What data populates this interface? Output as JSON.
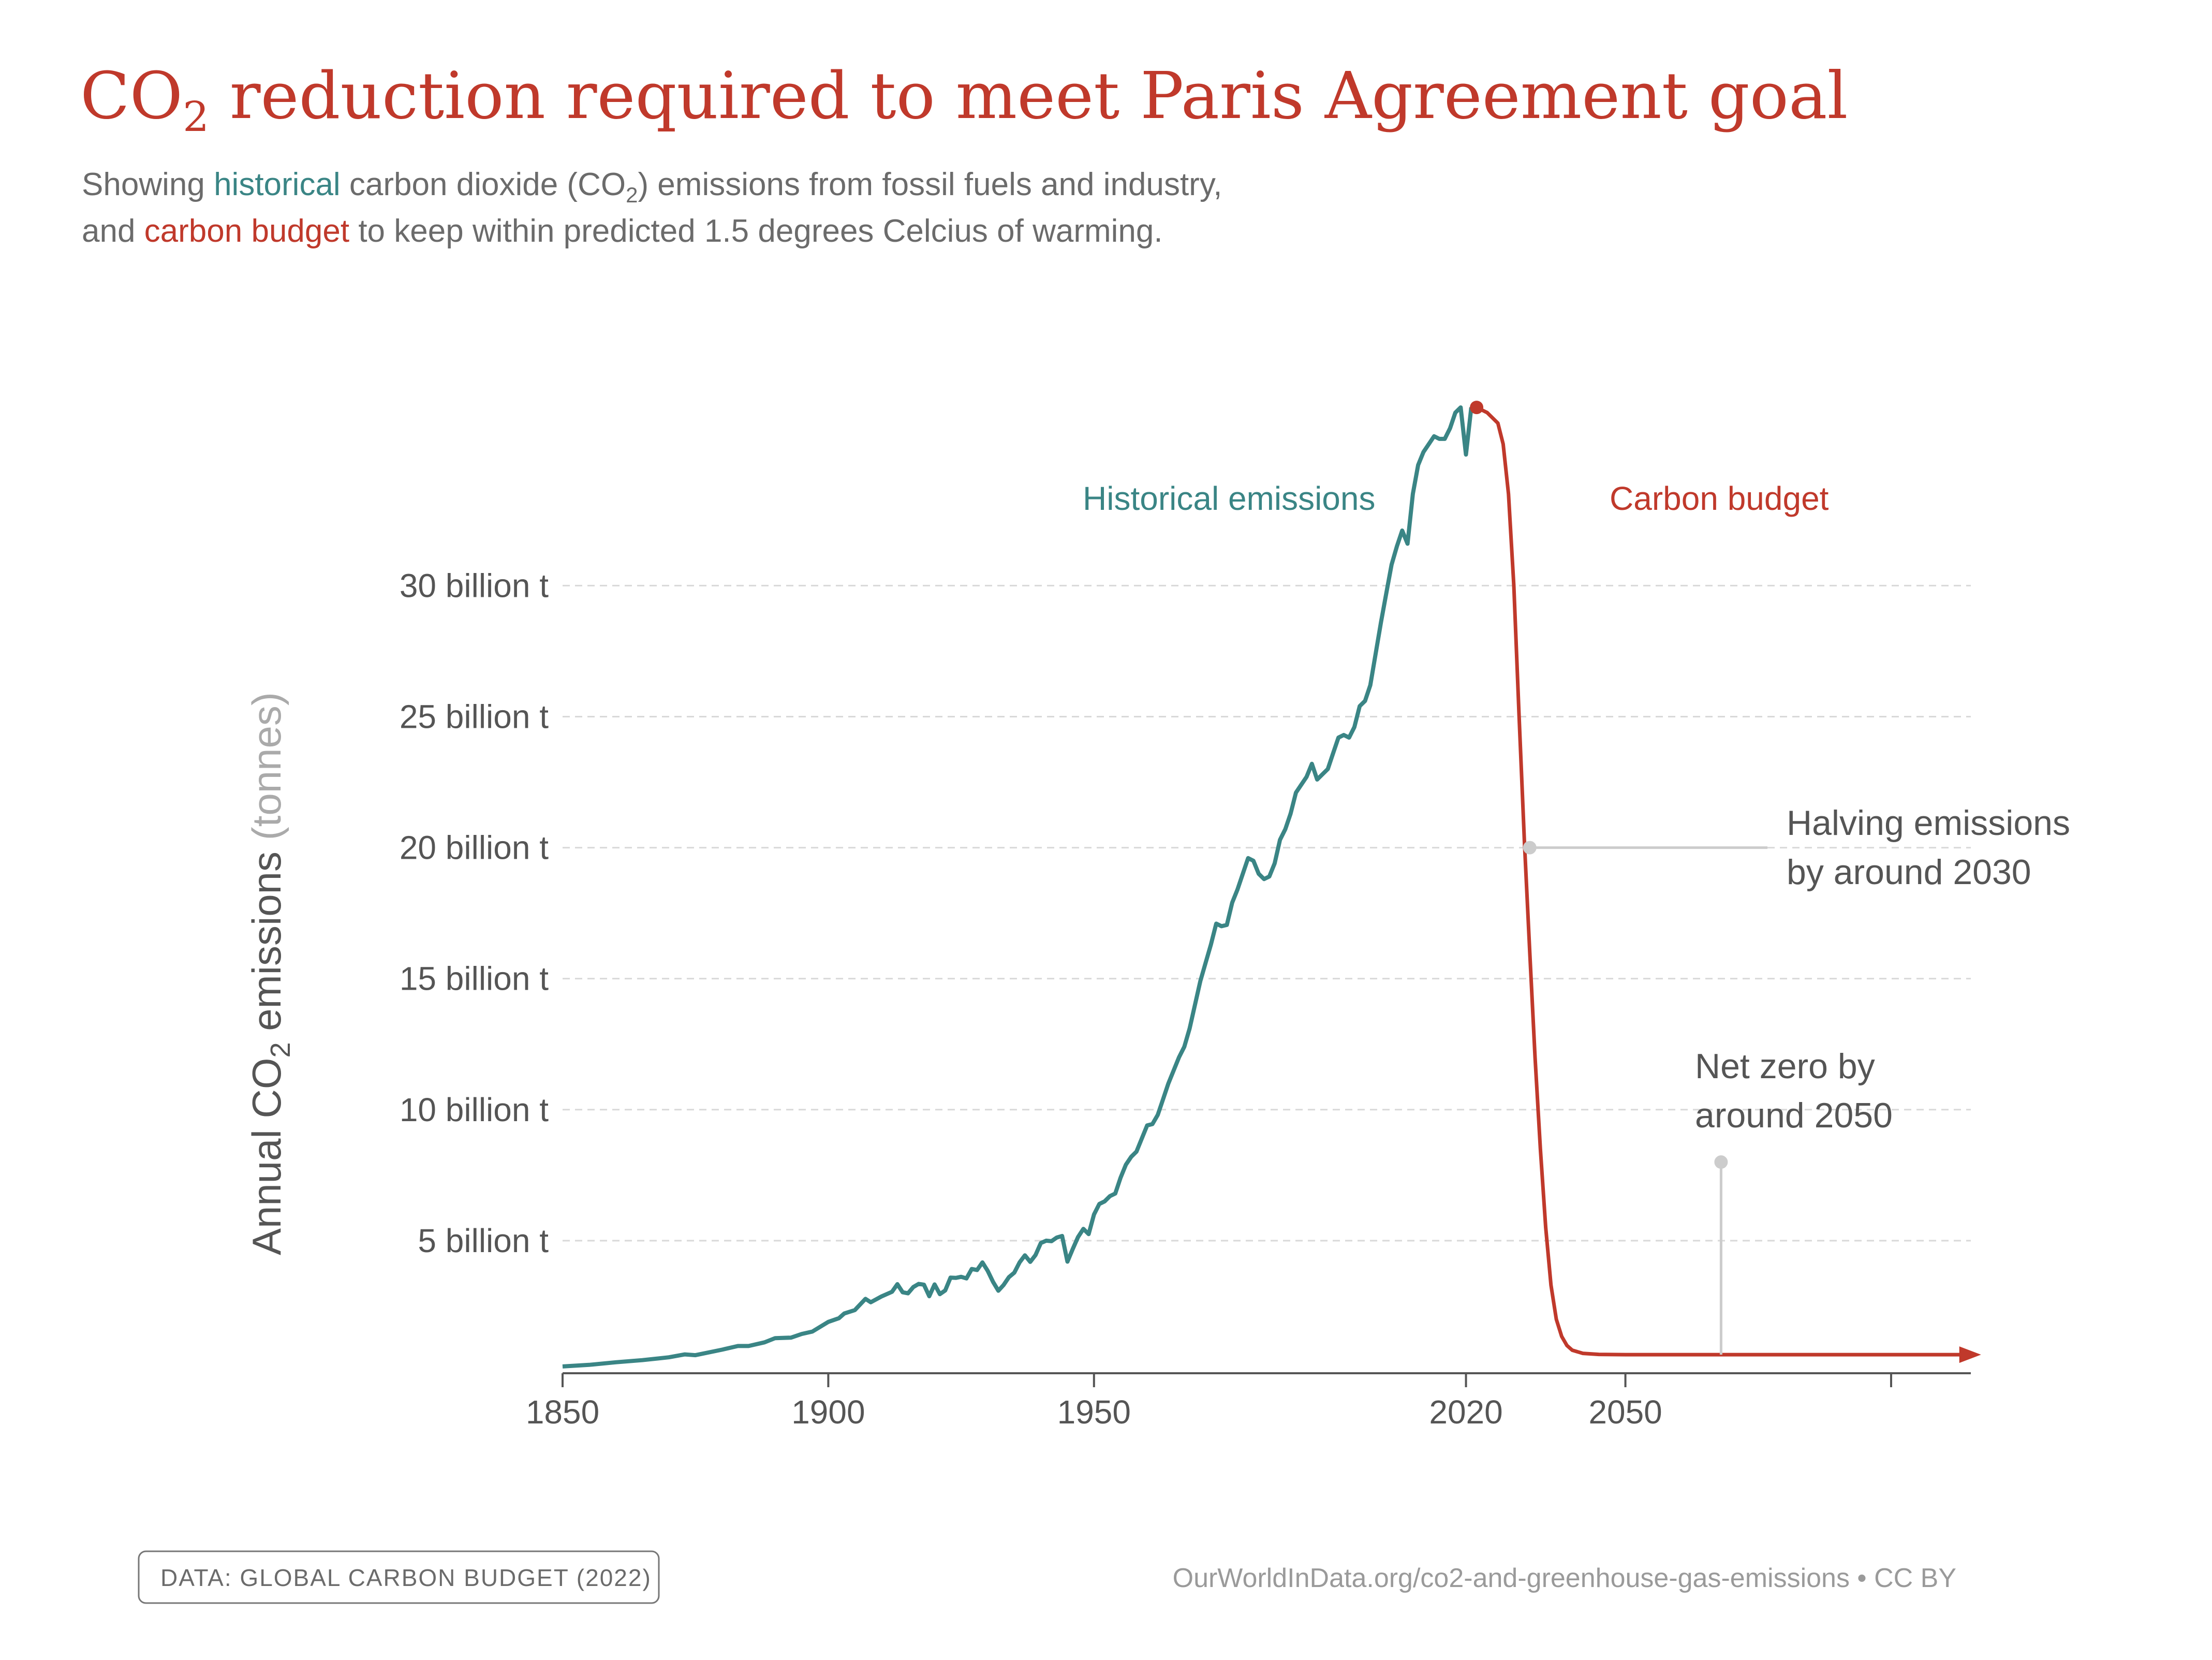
{
  "header": {
    "title_main": "CO",
    "title_sub": "2",
    "title_rest": " reduction required to meet Paris Agreement goal",
    "subtitle_line1_a": "Showing ",
    "subtitle_line1_hist": "historical",
    "subtitle_line1_b": " carbon dioxide (CO",
    "subtitle_line1_sub": "2",
    "subtitle_line1_c": ") emissions from fossil fuels and industry,",
    "subtitle_line2_a": "and ",
    "subtitle_line2_budget": "carbon budget",
    "subtitle_line2_b": " to keep within predicted 1.5 degrees Celcius of warming."
  },
  "axis": {
    "ylabel_main": "Annual CO",
    "ylabel_sub": "2",
    "ylabel_rest": " emissions ",
    "ylabel_unit": "(tonnes)"
  },
  "annotations": {
    "halving_line1": "Halving emissions",
    "halving_line2": "by around 2030",
    "netzero_line1": "Net zero by",
    "netzero_line2": "around 2050"
  },
  "footer": {
    "source": "DATA:  GLOBAL CARBON BUDGET (2022)",
    "url": "OurWorldInData.org/co2-and-greenhouse-gas-emissions • CC BY"
  },
  "colors": {
    "historical": "#3a8585",
    "budget": "#c0392b",
    "annotation_marker": "#cccccc",
    "axis": "#555555"
  },
  "chart_data": {
    "type": "line",
    "title": "CO₂ reduction required to meet Paris Agreement goal",
    "ylabel": "Annual CO₂ emissions (tonnes)",
    "xlabel": "",
    "xlim": [
      1850,
      2115
    ],
    "ylim": [
      0,
      37
    ],
    "x_ticks": [
      {
        "value": 1850,
        "label": "1850"
      },
      {
        "value": 1900,
        "label": "1900"
      },
      {
        "value": 1950,
        "label": "1950"
      },
      {
        "value": 2020,
        "label": "2020"
      },
      {
        "value": 2050,
        "label": "2050"
      }
    ],
    "y_ticks": [
      {
        "value": 5,
        "label": "5 billion t"
      },
      {
        "value": 10,
        "label": "10 billion t"
      },
      {
        "value": 15,
        "label": "15 billion t"
      },
      {
        "value": 20,
        "label": "20 billion t"
      },
      {
        "value": 25,
        "label": "25 billion t"
      },
      {
        "value": 30,
        "label": "30 billion t"
      }
    ],
    "grid": true,
    "series": [
      {
        "name": "Historical emissions",
        "unit": "billion t",
        "points": [
          [
            1850,
            0.2
          ],
          [
            1855,
            0.26
          ],
          [
            1860,
            0.36
          ],
          [
            1865,
            0.44
          ],
          [
            1870,
            0.55
          ],
          [
            1873,
            0.66
          ],
          [
            1875,
            0.63
          ],
          [
            1880,
            0.84
          ],
          [
            1883,
            0.98
          ],
          [
            1885,
            0.98
          ],
          [
            1888,
            1.12
          ],
          [
            1890,
            1.28
          ],
          [
            1893,
            1.3
          ],
          [
            1895,
            1.44
          ],
          [
            1897,
            1.53
          ],
          [
            1900,
            1.9
          ],
          [
            1902,
            2.04
          ],
          [
            1903,
            2.22
          ],
          [
            1905,
            2.35
          ],
          [
            1907,
            2.78
          ],
          [
            1908,
            2.65
          ],
          [
            1910,
            2.87
          ],
          [
            1912,
            3.05
          ],
          [
            1913,
            3.34
          ],
          [
            1914,
            3.03
          ],
          [
            1915,
            2.99
          ],
          [
            1916,
            3.23
          ],
          [
            1917,
            3.35
          ],
          [
            1918,
            3.32
          ],
          [
            1919,
            2.88
          ],
          [
            1920,
            3.33
          ],
          [
            1921,
            2.96
          ],
          [
            1922,
            3.1
          ],
          [
            1923,
            3.59
          ],
          [
            1924,
            3.58
          ],
          [
            1925,
            3.62
          ],
          [
            1926,
            3.56
          ],
          [
            1927,
            3.92
          ],
          [
            1928,
            3.88
          ],
          [
            1929,
            4.17
          ],
          [
            1930,
            3.85
          ],
          [
            1931,
            3.43
          ],
          [
            1932,
            3.09
          ],
          [
            1933,
            3.31
          ],
          [
            1934,
            3.61
          ],
          [
            1935,
            3.78
          ],
          [
            1936,
            4.17
          ],
          [
            1937,
            4.44
          ],
          [
            1938,
            4.19
          ],
          [
            1939,
            4.45
          ],
          [
            1940,
            4.91
          ],
          [
            1941,
            5.0
          ],
          [
            1942,
            4.98
          ],
          [
            1943,
            5.12
          ],
          [
            1944,
            5.18
          ],
          [
            1945,
            4.2
          ],
          [
            1946,
            4.68
          ],
          [
            1947,
            5.14
          ],
          [
            1948,
            5.45
          ],
          [
            1949,
            5.25
          ],
          [
            1950,
            6.0
          ],
          [
            1951,
            6.4
          ],
          [
            1952,
            6.5
          ],
          [
            1953,
            6.7
          ],
          [
            1954,
            6.8
          ],
          [
            1955,
            7.4
          ],
          [
            1956,
            7.9
          ],
          [
            1957,
            8.2
          ],
          [
            1958,
            8.4
          ],
          [
            1959,
            8.9
          ],
          [
            1960,
            9.4
          ],
          [
            1961,
            9.45
          ],
          [
            1962,
            9.8
          ],
          [
            1963,
            10.4
          ],
          [
            1964,
            11.0
          ],
          [
            1965,
            11.5
          ],
          [
            1966,
            12.0
          ],
          [
            1967,
            12.4
          ],
          [
            1968,
            13.1
          ],
          [
            1969,
            14.0
          ],
          [
            1970,
            14.9
          ],
          [
            1971,
            15.6
          ],
          [
            1972,
            16.3
          ],
          [
            1973,
            17.1
          ],
          [
            1974,
            17.0
          ],
          [
            1975,
            17.05
          ],
          [
            1976,
            17.9
          ],
          [
            1977,
            18.4
          ],
          [
            1978,
            19.0
          ],
          [
            1979,
            19.6
          ],
          [
            1980,
            19.5
          ],
          [
            1981,
            19.0
          ],
          [
            1982,
            18.8
          ],
          [
            1983,
            18.9
          ],
          [
            1984,
            19.4
          ],
          [
            1985,
            20.3
          ],
          [
            1986,
            20.7
          ],
          [
            1987,
            21.3
          ],
          [
            1988,
            22.1
          ],
          [
            1989,
            22.4
          ],
          [
            1990,
            22.7
          ],
          [
            1991,
            23.2
          ],
          [
            1992,
            22.6
          ],
          [
            1993,
            22.8
          ],
          [
            1994,
            23.0
          ],
          [
            1995,
            23.6
          ],
          [
            1996,
            24.2
          ],
          [
            1997,
            24.3
          ],
          [
            1998,
            24.2
          ],
          [
            1999,
            24.6
          ],
          [
            2000,
            25.4
          ],
          [
            2001,
            25.6
          ],
          [
            2002,
            26.2
          ],
          [
            2003,
            27.4
          ],
          [
            2004,
            28.6
          ],
          [
            2005,
            29.7
          ],
          [
            2006,
            30.8
          ],
          [
            2007,
            31.5
          ],
          [
            2008,
            32.1
          ],
          [
            2009,
            31.6
          ],
          [
            2010,
            33.5
          ],
          [
            2011,
            34.6
          ],
          [
            2012,
            35.1
          ],
          [
            2013,
            35.4
          ],
          [
            2014,
            35.7
          ],
          [
            2015,
            35.6
          ],
          [
            2016,
            35.6
          ],
          [
            2017,
            36.0
          ],
          [
            2018,
            36.6
          ],
          [
            2019,
            36.8
          ],
          [
            2020,
            35.0
          ],
          [
            2021,
            36.8
          ]
        ]
      },
      {
        "name": "Carbon budget",
        "unit": "billion t",
        "points": [
          [
            2022,
            36.8
          ],
          [
            2024,
            36.6
          ],
          [
            2026,
            36.2
          ],
          [
            2027,
            35.4
          ],
          [
            2028,
            33.5
          ],
          [
            2029,
            30.0
          ],
          [
            2030,
            25.0
          ],
          [
            2031,
            20.2
          ],
          [
            2032,
            16.0
          ],
          [
            2033,
            12.0
          ],
          [
            2034,
            8.5
          ],
          [
            2035,
            5.5
          ],
          [
            2036,
            3.3
          ],
          [
            2037,
            2.0
          ],
          [
            2038,
            1.35
          ],
          [
            2039,
            1.0
          ],
          [
            2040,
            0.82
          ],
          [
            2042,
            0.7
          ],
          [
            2045,
            0.66
          ],
          [
            2050,
            0.65
          ],
          [
            2060,
            0.65
          ],
          [
            2070,
            0.65
          ],
          [
            2080,
            0.65
          ],
          [
            2090,
            0.65
          ],
          [
            2100,
            0.65
          ],
          [
            2110,
            0.65
          ],
          [
            2114,
            0.65
          ]
        ]
      }
    ],
    "annotations": [
      {
        "text": "Halving emissions by around 2030",
        "x": 2032,
        "y": 20
      },
      {
        "text": "Net zero by around 2050",
        "x": 2068,
        "y": 8
      }
    ]
  }
}
